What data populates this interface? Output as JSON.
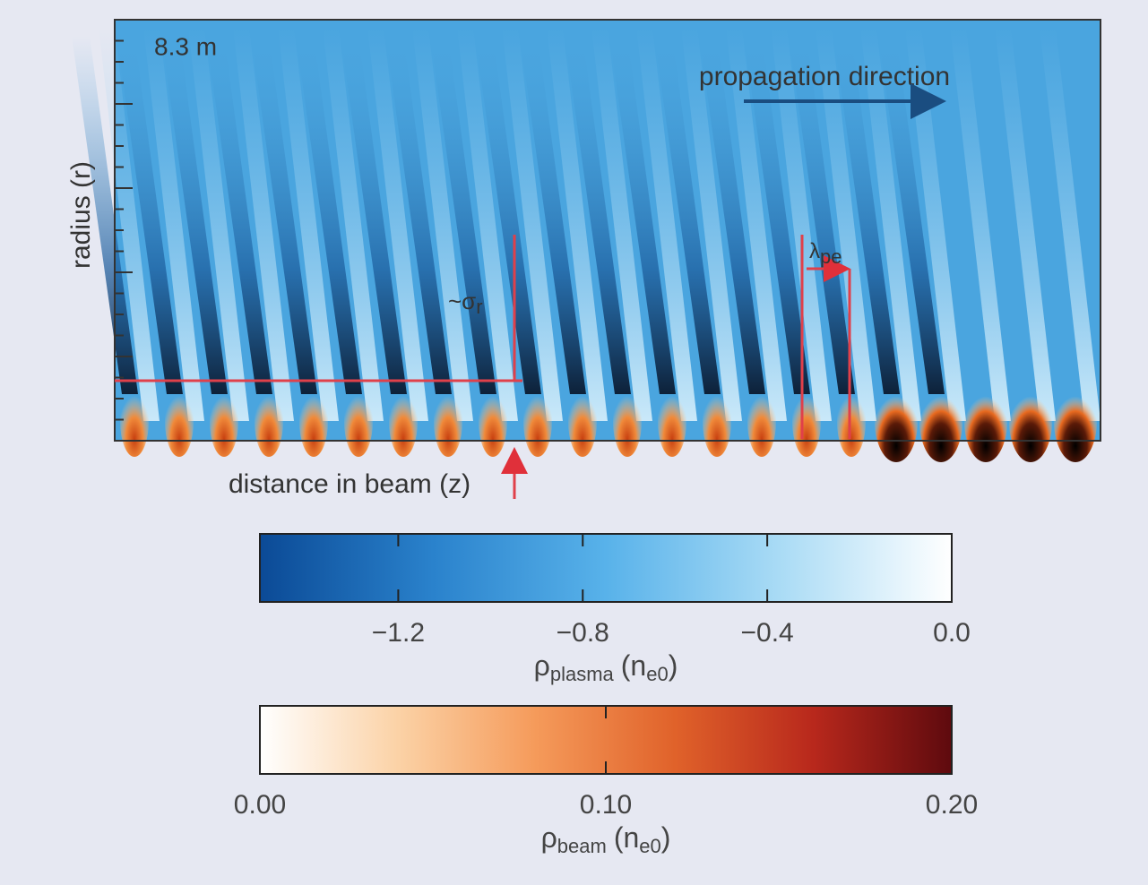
{
  "chart_data": {
    "type": "heatmap",
    "ylabel": "radius (r)",
    "xlabel": "distance in beam (z)",
    "time_label": "8.3 m",
    "direction_label": "propagation direction",
    "sigma_label": {
      "base": "~σ",
      "sub": "r"
    },
    "lambda_label": {
      "base": "λ",
      "sub": "pe"
    },
    "colorbars": [
      {
        "label": {
          "base": "ρ",
          "sub": "plasma",
          "unit": "(n",
          "unit_sub": "e0",
          "close": ")"
        },
        "lim": [
          -1.5,
          0
        ],
        "ticks": [
          {
            "value": -1.2,
            "label": "−1.2"
          },
          {
            "value": -0.8,
            "label": "−0.8"
          },
          {
            "value": -0.4,
            "label": "−0.4"
          },
          {
            "value": 0,
            "label": "0.0"
          }
        ],
        "colors": [
          "#0b4a96",
          "#2a82cc",
          "#58b2ea",
          "#a9dbf5",
          "#ffffff"
        ]
      },
      {
        "label": {
          "base": "ρ",
          "sub": "beam",
          "unit": "(n",
          "unit_sub": "e0",
          "close": ")"
        },
        "lim": [
          0,
          0.2
        ],
        "ticks": [
          {
            "value": 0,
            "label": "0.00"
          },
          {
            "value": 0.1,
            "label": "0.10"
          },
          {
            "value": 0.2,
            "label": "0.20"
          }
        ],
        "colors": [
          "#ffffff",
          "#fbd2a6",
          "#f59a5a",
          "#e0622a",
          "#b8281c",
          "#5e0a0e"
        ]
      }
    ]
  }
}
